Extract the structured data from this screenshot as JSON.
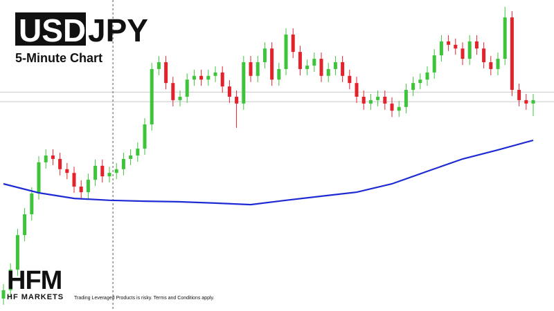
{
  "chart_data": {
    "type": "candlestick",
    "title_box": "USD",
    "title": "JPY",
    "subtitle": "5-Minute Chart",
    "logo": "HFM",
    "logo_caption": "HF MARKETS",
    "disclaimer": "Trading Leveraged Products is risky. Terms and Conditions apply.",
    "ylim": [
      0,
      100
    ],
    "up_color": "#3dc43a",
    "down_color": "#e3222c",
    "open": [
      4,
      6.7,
      13.3,
      24.4,
      31.1,
      37.8,
      47.8,
      50,
      48.9,
      45.6,
      44.4,
      40,
      38.2,
      42.2,
      46.7,
      43.3,
      44.4,
      45.6,
      48.9,
      50,
      52.2,
      60,
      77.8,
      80,
      73.3,
      67.8,
      68.9,
      74.4,
      75.6,
      74.4,
      75.6,
      76.7,
      72.2,
      68.9,
      66.7,
      80,
      75.6,
      80,
      84.4,
      74.4,
      77.8,
      88.9,
      83.3,
      77.8,
      78.9,
      81.1,
      75.6,
      77.8,
      80,
      75.6,
      73.3,
      68.9,
      66.7,
      67.8,
      68.9,
      66.7,
      64.4,
      65.6,
      71.1,
      73.3,
      74.4,
      76.7,
      82.2,
      86.7,
      85.6,
      84.4,
      81.1,
      86.7,
      84.4,
      80,
      77.8,
      81.1,
      94.4,
      71.1,
      67.8,
      66.7
    ],
    "high": [
      8.7,
      15.3,
      26.4,
      33.1,
      39.8,
      49.8,
      52,
      52,
      50.9,
      47.6,
      46.4,
      42,
      44.2,
      48.7,
      48.7,
      46.4,
      47.6,
      50.9,
      52,
      54.2,
      62,
      79.8,
      82,
      82,
      75.3,
      70.9,
      76.4,
      77.6,
      77.6,
      77.6,
      78.7,
      78.7,
      74.2,
      70.9,
      82,
      82,
      82,
      86.4,
      86.4,
      79.8,
      90.9,
      90.9,
      85.3,
      80.9,
      83.1,
      83.1,
      79.8,
      82,
      82,
      77.6,
      75.3,
      70.9,
      69.8,
      70.9,
      70.9,
      68.7,
      67.6,
      73.1,
      75.3,
      76.4,
      78.7,
      84.2,
      88.7,
      88.7,
      87.6,
      86.4,
      88.7,
      88.7,
      86.4,
      82,
      83.1,
      97.8,
      96.4,
      73.1,
      69.8,
      69.8
    ],
    "low": [
      2,
      4.7,
      11.3,
      22.4,
      29.1,
      35.8,
      45.8,
      46.9,
      43.6,
      42.4,
      38,
      36.2,
      36.2,
      40.2,
      41.3,
      41.3,
      42.4,
      43.6,
      46.9,
      48,
      50.2,
      58,
      75.8,
      71.3,
      65.8,
      65.8,
      66.9,
      72.4,
      72.4,
      72.4,
      73.6,
      70.2,
      66.9,
      58.9,
      64.7,
      73.6,
      73.6,
      78,
      72.4,
      72.4,
      75.8,
      81.3,
      75.8,
      75.8,
      76.9,
      73.6,
      73.6,
      75.8,
      73.6,
      71.3,
      66.9,
      64.7,
      64.7,
      65.8,
      64.7,
      62.4,
      62.4,
      63.6,
      69.1,
      71.3,
      72.4,
      74.7,
      80.2,
      83.6,
      82.4,
      79.1,
      79.1,
      82.4,
      78,
      75.8,
      75.8,
      79.1,
      69.1,
      65.8,
      64.7,
      62.7
    ],
    "close": [
      6.7,
      13.3,
      24.4,
      31.1,
      37.8,
      47.8,
      50,
      48.9,
      45.6,
      44.4,
      40,
      38.2,
      42.2,
      46.7,
      43.3,
      44.4,
      45.6,
      48.9,
      50,
      52.2,
      60,
      77.8,
      80,
      73.3,
      67.8,
      68.9,
      74.4,
      75.6,
      74.4,
      75.6,
      76.7,
      72.2,
      68.9,
      66.7,
      80,
      75.6,
      80,
      84.4,
      74.4,
      77.8,
      88.9,
      83.3,
      77.8,
      78.9,
      81.1,
      75.6,
      77.8,
      80,
      75.6,
      73.3,
      68.9,
      66.7,
      67.8,
      68.9,
      66.7,
      64.4,
      65.6,
      71.1,
      73.3,
      74.4,
      76.7,
      82.2,
      86.7,
      85.6,
      84.4,
      81.1,
      86.7,
      84.4,
      80,
      77.8,
      81.1,
      94.4,
      71.1,
      67.8,
      66.7,
      67.8
    ],
    "moving_average": {
      "color": "#1e2bd4",
      "x": [
        0,
        5,
        10,
        15,
        20,
        25,
        30,
        35,
        40,
        45,
        50,
        55,
        60,
        65,
        70,
        75
      ],
      "values": [
        40.9,
        38.0,
        36.2,
        35.6,
        35.3,
        35.1,
        34.7,
        34.2,
        35.6,
        36.9,
        38.2,
        40.9,
        44.9,
        48.9,
        51.8,
        54.9
      ]
    },
    "hlines": [
      70.4,
      67.3
    ],
    "vline": 15.5
  }
}
